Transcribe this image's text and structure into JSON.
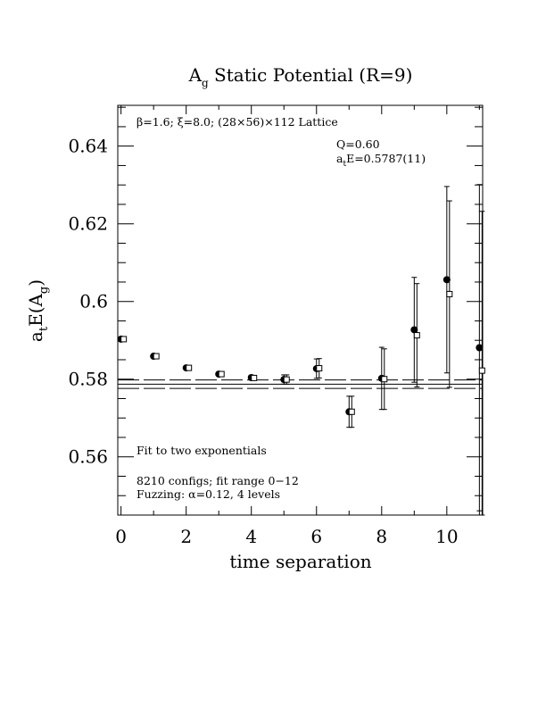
{
  "chart_data": {
    "type": "scatter",
    "title_main": "A",
    "title_sub": "g",
    "title_rest": " Static Potential (R=9)",
    "xlabel": "time separation",
    "ylabel_a": "a",
    "ylabel_t": "t",
    "ylabel_e": "E(A",
    "ylabel_g": "g",
    "ylabel_close": ")",
    "xlim": [
      -0.1,
      11.1
    ],
    "ylim": [
      0.545,
      0.6505
    ],
    "xticks": [
      0,
      2,
      4,
      6,
      8,
      10
    ],
    "xtick_labels": [
      "0",
      "2",
      "4",
      "6",
      "8",
      "10"
    ],
    "yticks": [
      0.56,
      0.58,
      0.6,
      0.62,
      0.64
    ],
    "ytick_labels": [
      "0.56",
      "0.58",
      "0.6",
      "0.62",
      "0.64"
    ],
    "lattice_label": "β=1.6; ξ=8.0; (28×56)×112 Lattice",
    "q_label": "Q=0.60",
    "energy_label_a": "a",
    "energy_label_t": "t",
    "energy_label_rest": "E=0.5787(11)",
    "fit_label": "Fit to two exponentials",
    "configs_label": "8210 configs; fit range 0−12",
    "fuzz_label": "Fuzzing: α=0.12, 4 levels",
    "fit_band": {
      "center": 0.5787,
      "upper": 0.5798,
      "lower": 0.5776
    },
    "series": [
      {
        "marker": "filled-circle",
        "points": [
          {
            "x": 0,
            "y": 0.5903,
            "err": 0.0003
          },
          {
            "x": 1,
            "y": 0.5859,
            "err": 0.0003
          },
          {
            "x": 2,
            "y": 0.5829,
            "err": 0.0003
          },
          {
            "x": 3,
            "y": 0.5813,
            "err": 0.0004
          },
          {
            "x": 4,
            "y": 0.5804,
            "err": 0.0006
          },
          {
            "x": 5,
            "y": 0.5799,
            "err": 0.0012
          },
          {
            "x": 6,
            "y": 0.5827,
            "err": 0.0025
          },
          {
            "x": 7,
            "y": 0.5716,
            "err": 0.004
          },
          {
            "x": 8,
            "y": 0.5802,
            "err": 0.008
          },
          {
            "x": 9,
            "y": 0.5927,
            "err": 0.0135
          },
          {
            "x": 10,
            "y": 0.6056,
            "err": 0.024
          },
          {
            "x": 11,
            "y": 0.5881,
            "err": 0.042
          }
        ]
      },
      {
        "marker": "open-square",
        "points": [
          {
            "x": 0,
            "y": 0.5903,
            "err": 0.0003
          },
          {
            "x": 1,
            "y": 0.5859,
            "err": 0.0003
          },
          {
            "x": 2,
            "y": 0.5829,
            "err": 0.0003
          },
          {
            "x": 3,
            "y": 0.5813,
            "err": 0.0004
          },
          {
            "x": 4,
            "y": 0.5803,
            "err": 0.0006
          },
          {
            "x": 5,
            "y": 0.5799,
            "err": 0.0012
          },
          {
            "x": 6,
            "y": 0.5828,
            "err": 0.0025
          },
          {
            "x": 7,
            "y": 0.5716,
            "err": 0.004
          },
          {
            "x": 8,
            "y": 0.58,
            "err": 0.0078
          },
          {
            "x": 9,
            "y": 0.5913,
            "err": 0.0133
          },
          {
            "x": 10,
            "y": 0.6019,
            "err": 0.024
          },
          {
            "x": 11,
            "y": 0.5822,
            "err": 0.041
          }
        ]
      }
    ]
  }
}
